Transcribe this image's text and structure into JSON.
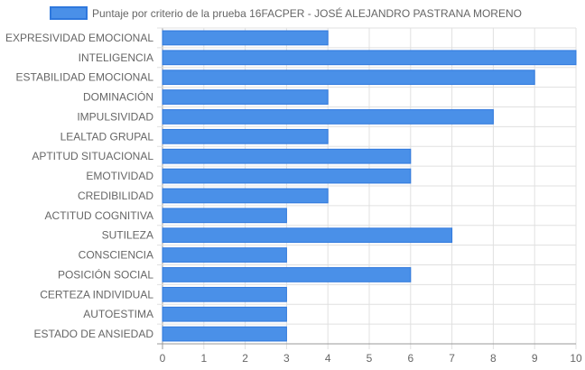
{
  "chart_data": {
    "type": "bar",
    "orientation": "horizontal",
    "legend": {
      "label": "Puntaje por criterio de la prueba 16FACPER - JOSÉ ALEJANDRO PASTRANA MORENO",
      "position": "top"
    },
    "categories": [
      "EXPRESIVIDAD EMOCIONAL",
      "INTELIGENCIA",
      "ESTABILIDAD EMOCIONAL",
      "DOMINACIÓN",
      "IMPULSIVIDAD",
      "LEALTAD GRUPAL",
      "APTITUD SITUACIONAL",
      "EMOTIVIDAD",
      "CREDIBILIDAD",
      "ACTITUD COGNITIVA",
      "SUTILEZA",
      "CONSCIENCIA",
      "POSICIÓN SOCIAL",
      "CERTEZA INDIVIDUAL",
      "AUTOESTIMA",
      "ESTADO DE ANSIEDAD"
    ],
    "series": [
      {
        "name": "Puntaje por criterio de la prueba 16FACPER - JOSÉ ALEJANDRO PASTRANA MORENO",
        "values": [
          4,
          10,
          9,
          4,
          8,
          4,
          6,
          6,
          4,
          3,
          7,
          3,
          6,
          3,
          3,
          3
        ]
      }
    ],
    "xlim": [
      0,
      10
    ],
    "xticks": [
      "0",
      "1",
      "2",
      "3",
      "4",
      "5",
      "6",
      "7",
      "8",
      "9",
      "10"
    ],
    "grid": true,
    "colors": {
      "bar_fill": "#4a90e8",
      "bar_border": "#2f78dd",
      "grid": "#e0e0e0",
      "axis": "#999999",
      "text": "#666666"
    }
  }
}
